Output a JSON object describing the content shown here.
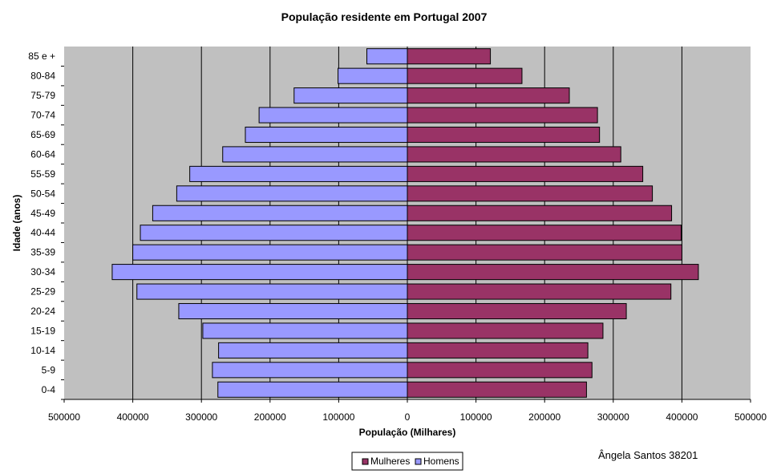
{
  "chart_data": {
    "type": "bar",
    "orientation": "horizontal",
    "title": "População residente em Portugal 2007",
    "xlabel": "População (Milhares)",
    "ylabel": "Idade (anos)",
    "xlim": [
      -500000,
      500000
    ],
    "x_ticks": [
      -500000,
      -400000,
      -300000,
      -200000,
      -100000,
      0,
      100000,
      200000,
      300000,
      400000,
      500000
    ],
    "x_tick_labels": [
      "500000",
      "400000",
      "300000",
      "200000",
      "100000",
      "0",
      "100000",
      "200000",
      "300000",
      "400000",
      "500000"
    ],
    "categories": [
      "0-4",
      "5-9",
      "10-14",
      "15-19",
      "20-24",
      "25-29",
      "30-34",
      "35-39",
      "40-44",
      "45-49",
      "50-54",
      "55-59",
      "60-64",
      "65-69",
      "70-74",
      "75-79",
      "80-84",
      "85 e +"
    ],
    "series": [
      {
        "name": "Homens",
        "color": "#9999ff",
        "values": [
          -276000,
          -284000,
          -275000,
          -298000,
          -333000,
          -394000,
          -430000,
          -400000,
          -389000,
          -371000,
          -336000,
          -317000,
          -269000,
          -236000,
          -216000,
          -165000,
          -101000,
          -59000
        ]
      },
      {
        "name": "Mulheres",
        "color": "#993366",
        "values": [
          261000,
          269000,
          263000,
          285000,
          319000,
          384000,
          424000,
          400000,
          399000,
          385000,
          357000,
          343000,
          311000,
          280000,
          277000,
          236000,
          167000,
          121000
        ]
      }
    ],
    "legend": {
      "position": "bottom",
      "order": [
        "Mulheres",
        "Homens"
      ]
    },
    "grid": "vertical",
    "plot_background": "#c0c0c0"
  },
  "annotation": "Ângela Santos 38201"
}
